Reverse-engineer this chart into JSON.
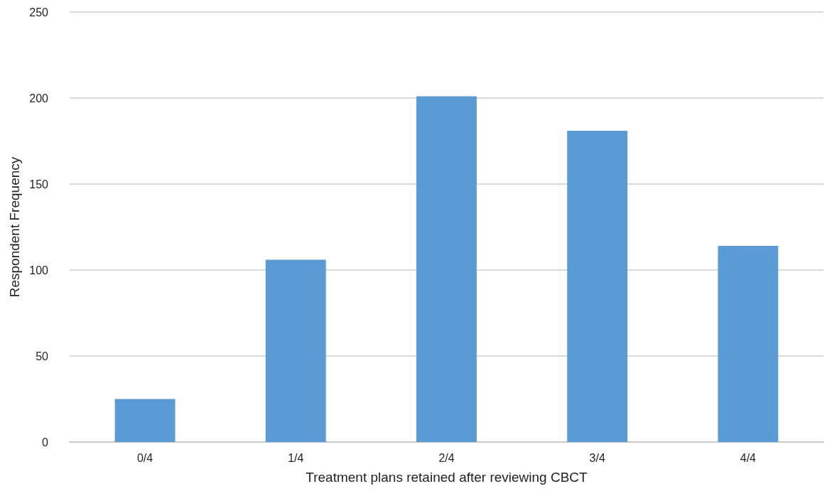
{
  "chart_data": {
    "type": "bar",
    "xlabel": "Treatment plans retained after reviewing CBCT",
    "ylabel": "Respondent Frequency",
    "categories": [
      "0/4",
      "1/4",
      "2/4",
      "3/4",
      "4/4"
    ],
    "values": [
      25,
      106,
      201,
      181,
      114
    ],
    "color": "#5b9bd5",
    "ylim": [
      0,
      250
    ],
    "yticks": [
      0,
      50,
      100,
      150,
      200,
      250
    ],
    "grid": "y"
  }
}
